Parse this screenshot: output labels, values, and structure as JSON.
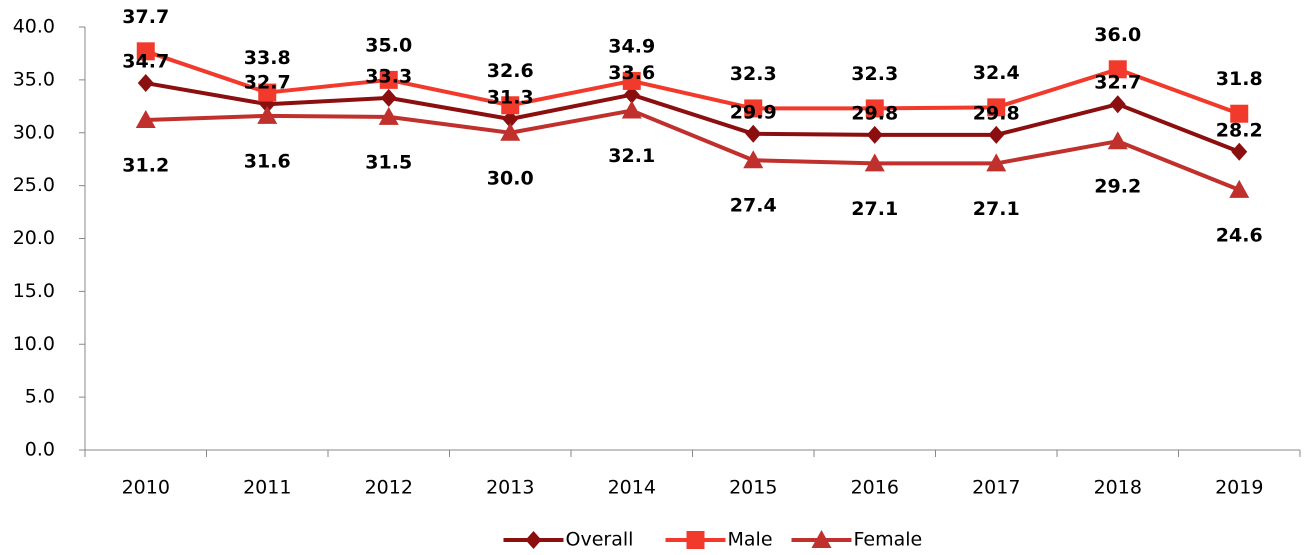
{
  "chart_data": {
    "type": "line",
    "categories": [
      "2010",
      "2011",
      "2012",
      "2013",
      "2014",
      "2015",
      "2016",
      "2017",
      "2018",
      "2019"
    ],
    "series": [
      {
        "name": "Overall",
        "color": "#8b0f0f",
        "marker": "diamond",
        "values": [
          34.7,
          32.7,
          33.3,
          31.3,
          33.6,
          29.9,
          29.8,
          29.8,
          32.7,
          28.2
        ],
        "value_labels": [
          "34.7",
          "32.7",
          "33.3",
          "31.3",
          "33.6",
          "29.9",
          "29.8",
          "29.8",
          "32.7",
          "28.2"
        ]
      },
      {
        "name": "Male",
        "color": "#f23a2c",
        "marker": "square",
        "values": [
          37.7,
          33.8,
          35.0,
          32.6,
          34.9,
          32.3,
          32.3,
          32.4,
          36.0,
          31.8
        ],
        "value_labels": [
          "37.7",
          "33.8",
          "35.0",
          "32.6",
          "34.9",
          "32.3",
          "32.3",
          "32.4",
          "36.0",
          "31.8"
        ]
      },
      {
        "name": "Female",
        "color": "#c0302c",
        "marker": "triangle",
        "values": [
          31.2,
          31.6,
          31.5,
          30.0,
          32.1,
          27.4,
          27.1,
          27.1,
          29.2,
          24.6
        ],
        "value_labels": [
          "31.2",
          "31.6",
          "31.5",
          "30.0",
          "32.1",
          "27.4",
          "27.1",
          "27.1",
          "29.2",
          "24.6"
        ]
      }
    ],
    "ylim": [
      0,
      40
    ],
    "yticks": [
      {
        "value": 0,
        "label": "0.0"
      },
      {
        "value": 5,
        "label": "5.0"
      },
      {
        "value": 10,
        "label": "10.0"
      },
      {
        "value": 15,
        "label": "15.0"
      },
      {
        "value": 20,
        "label": "20.0"
      },
      {
        "value": 25,
        "label": "25.0"
      },
      {
        "value": 30,
        "label": "30.0"
      },
      {
        "value": 35,
        "label": "35.0"
      },
      {
        "value": 40,
        "label": "40.0"
      }
    ],
    "grid": false,
    "legend": "bottom"
  }
}
